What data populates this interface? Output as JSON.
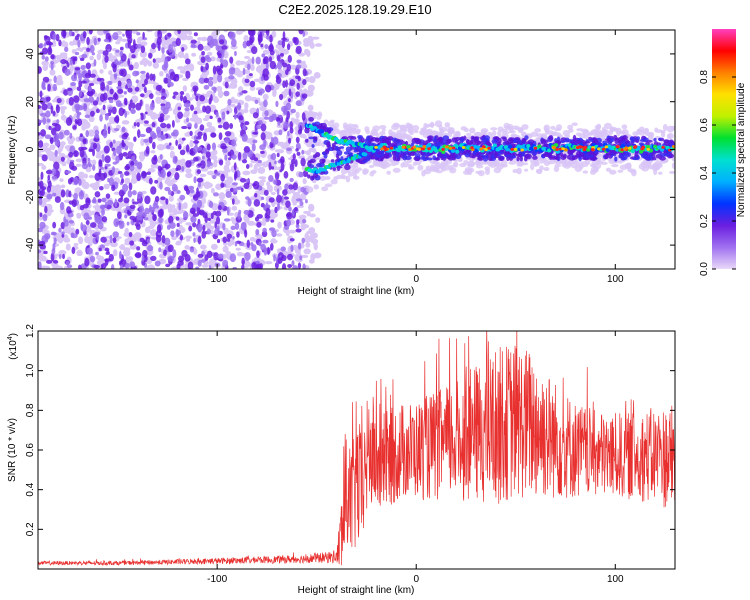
{
  "title": "C2E2.2025.128.19.29.E10",
  "colors": {
    "snr_line": "#e8302f",
    "spectrogram_noise": "#6a1fe0",
    "colorbar_stops": [
      "#e8d8f8",
      "#a070f0",
      "#6a1fe0",
      "#0033ff",
      "#00b0ff",
      "#00e0d0",
      "#00e030",
      "#c0f000",
      "#ffe000",
      "#ff8000",
      "#ff0000",
      "#ff40c0"
    ]
  },
  "chart_data": [
    {
      "type": "heatmap",
      "xlabel": "Height of straight line (km)",
      "ylabel": "Frequency (Hz)",
      "xlim": [
        -190,
        130
      ],
      "ylim": [
        -50,
        50
      ],
      "xticks": [
        -100,
        0,
        100
      ],
      "yticks": [
        -40,
        -20,
        0,
        20,
        40
      ],
      "noise_region_x": [
        -190,
        -55
      ],
      "signal_ridge": {
        "x": [
          -58,
          -50,
          -40,
          -30,
          -20,
          -10,
          0,
          20,
          40,
          60,
          80,
          100,
          130
        ],
        "y_upper": [
          12,
          8,
          4,
          2,
          1,
          1,
          1,
          1,
          1,
          1,
          1,
          1,
          1
        ],
        "y_lower": [
          -8,
          -9,
          -6,
          -3,
          0,
          0,
          0,
          0,
          0,
          0,
          0,
          0,
          0
        ]
      },
      "colorbar": {
        "label": "Normalized spectral amplitude",
        "range": [
          0,
          1
        ],
        "ticks": [
          0.0,
          0.2,
          0.4,
          0.6,
          0.8
        ]
      },
      "grid": false
    },
    {
      "type": "line",
      "xlabel": "Height of straight line (km)",
      "ylabel": "SNR (10 * v/v)",
      "yscale_note": "(x10",
      "yscale_exp": "4",
      "xlim": [
        -190,
        130
      ],
      "ylim": [
        0,
        1.2
      ],
      "xticks": [
        -100,
        0,
        100
      ],
      "yticks": [
        0.2,
        0.4,
        0.6,
        0.8,
        1.0,
        1.2
      ],
      "series": [
        {
          "x": [
            -190,
            -150,
            -100,
            -60,
            -40,
            -37,
            -35,
            -32,
            -30,
            -27,
            -25,
            -22,
            -20,
            -15,
            -10,
            -5,
            0,
            10,
            20,
            30,
            40,
            50,
            60,
            70,
            80,
            90,
            100,
            110,
            120,
            130
          ],
          "y_base": [
            0.03,
            0.03,
            0.04,
            0.05,
            0.06,
            0.2,
            0.38,
            0.32,
            0.45,
            0.38,
            0.55,
            0.6,
            0.52,
            0.55,
            0.58,
            0.6,
            0.6,
            0.62,
            0.65,
            0.68,
            0.72,
            0.75,
            0.72,
            0.65,
            0.6,
            0.58,
            0.57,
            0.57,
            0.57,
            0.56
          ],
          "y_amp": [
            0.01,
            0.01,
            0.015,
            0.02,
            0.03,
            0.25,
            0.3,
            0.3,
            0.35,
            0.3,
            0.3,
            0.3,
            0.25,
            0.25,
            0.25,
            0.25,
            0.25,
            0.28,
            0.3,
            0.35,
            0.4,
            0.4,
            0.38,
            0.3,
            0.25,
            0.22,
            0.22,
            0.22,
            0.25,
            0.28
          ]
        }
      ]
    }
  ]
}
